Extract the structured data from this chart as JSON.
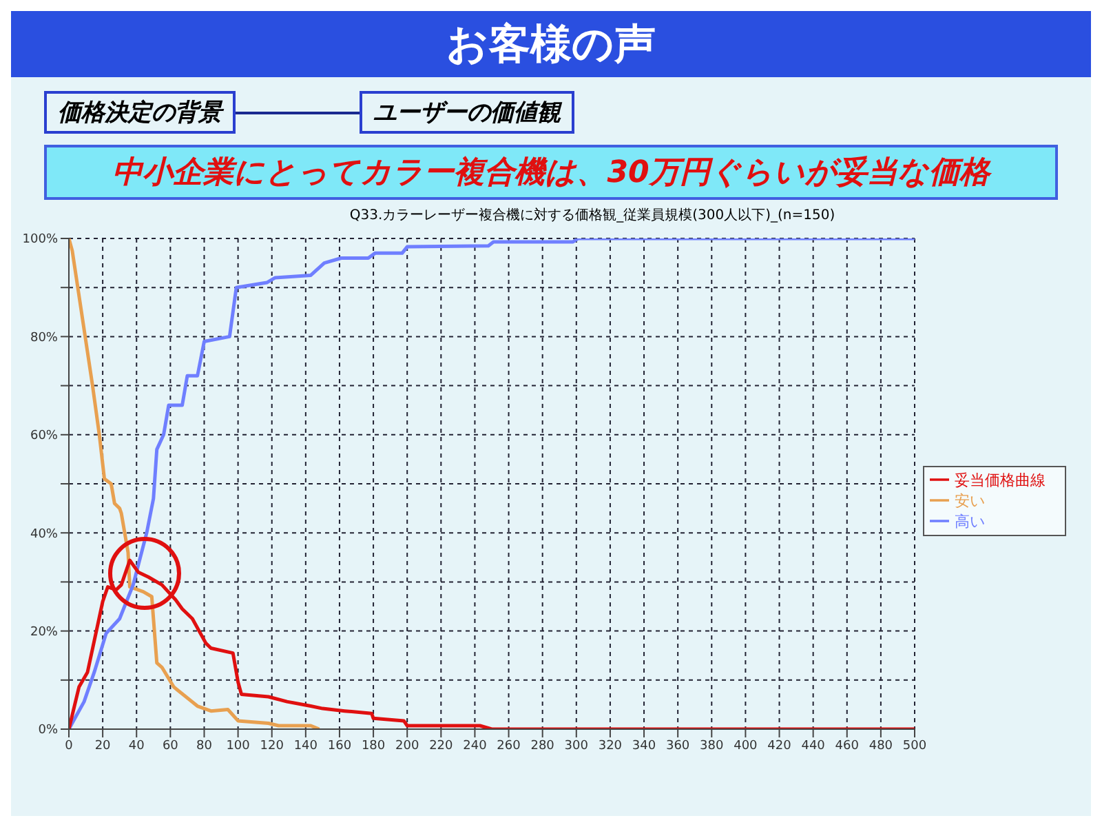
{
  "chart_data": {
    "type": "line",
    "title": "お客様の声",
    "subtitle": "Q33.カラーレーザー複合機に対する価格観_従業員規模(300人以下)_(n=150)",
    "annotations": [
      "価格決定の背景",
      "ユーザーの価値観",
      "中小企業にとってカラー複合機は、30万円ぐらいが妥当な価格"
    ],
    "series": [
      {
        "name": "安い",
        "color": "#e8a050",
        "x": [
          0,
          2,
          14,
          18,
          21,
          25,
          27,
          30,
          31,
          35,
          36,
          44,
          49,
          52,
          55,
          62,
          76,
          84,
          94,
          100,
          118,
          124,
          143,
          148
        ],
        "values": [
          100,
          97.5,
          70,
          60,
          51,
          50,
          46,
          45,
          44,
          36,
          29,
          28,
          27,
          13.5,
          12.6,
          8.6,
          4.7,
          3.7,
          4,
          1.7,
          1.2,
          0.7,
          0.7,
          0
        ]
      },
      {
        "name": "高い",
        "color": "#6f7fff",
        "x": [
          0,
          9,
          15,
          22,
          30,
          38,
          46,
          50,
          52,
          56,
          59,
          67,
          70,
          76,
          80,
          95,
          99,
          117,
          122,
          143,
          151,
          161,
          177,
          181,
          197,
          200,
          248,
          251,
          298,
          301,
          500
        ],
        "values": [
          0,
          5.6,
          11.6,
          19.5,
          22.5,
          29.4,
          40,
          47,
          57,
          60,
          66,
          66,
          72,
          72,
          79,
          80,
          90,
          91,
          92,
          92.5,
          95,
          96,
          96,
          97,
          97,
          98.3,
          98.5,
          99.3,
          99.3,
          100,
          100
        ]
      },
      {
        "name": "妥当価格曲線",
        "color": "#e01010",
        "x": [
          0,
          6,
          11,
          20,
          23,
          28,
          31,
          36,
          41,
          47,
          55,
          63,
          67,
          73,
          81,
          84,
          97,
          100,
          102,
          118,
          129,
          143,
          150,
          163,
          179,
          180,
          198,
          200,
          243,
          250,
          500
        ],
        "values": [
          0,
          8.6,
          11.6,
          26,
          29,
          28.4,
          29.4,
          34.4,
          32,
          31,
          29.4,
          26.4,
          24.5,
          22.5,
          17.5,
          16.5,
          15.5,
          9.6,
          7.1,
          6.6,
          5.6,
          4.7,
          4.2,
          3.7,
          3.2,
          2.2,
          1.7,
          0.7,
          0.7,
          0,
          0
        ]
      }
    ],
    "xlim": [
      0,
      500
    ],
    "xticks": [
      0,
      20,
      40,
      60,
      80,
      100,
      120,
      140,
      160,
      180,
      200,
      220,
      240,
      260,
      280,
      300,
      320,
      340,
      360,
      380,
      400,
      420,
      440,
      460,
      480,
      500
    ],
    "ylim": [
      0,
      100
    ],
    "yticks": [
      {
        "value": 0,
        "label": "0%"
      },
      {
        "value": 10,
        "label": null
      },
      {
        "value": 20,
        "label": "20%"
      },
      {
        "value": 30,
        "label": null
      },
      {
        "value": 40,
        "label": "40%"
      },
      {
        "value": 50,
        "label": null
      },
      {
        "value": 60,
        "label": "60%"
      },
      {
        "value": 70,
        "label": null
      },
      {
        "value": 80,
        "label": "80%"
      },
      {
        "value": 90,
        "label": null
      },
      {
        "value": 100,
        "label": "100%"
      }
    ],
    "grid": true,
    "legend": "right",
    "marker": "none",
    "line_style": "solid"
  }
}
